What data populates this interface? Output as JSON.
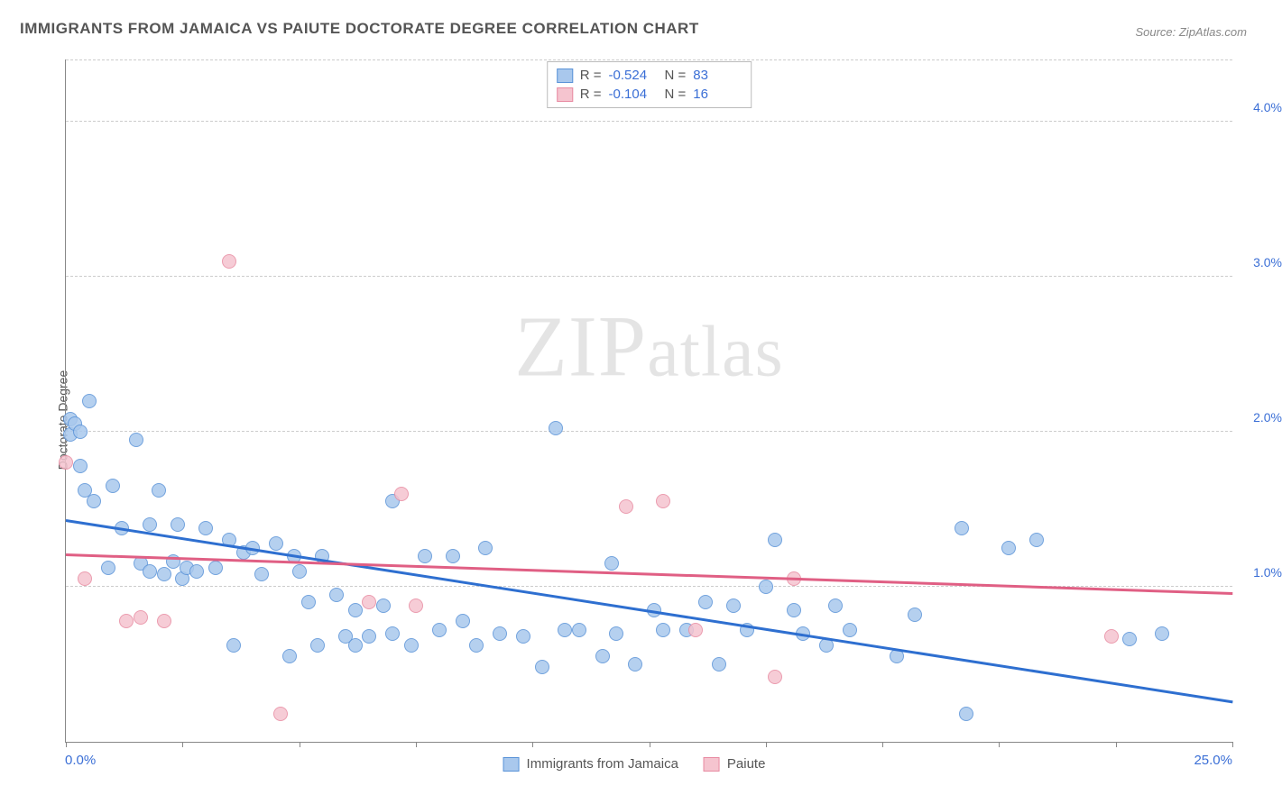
{
  "title": "IMMIGRANTS FROM JAMAICA VS PAIUTE DOCTORATE DEGREE CORRELATION CHART",
  "source_label": "Source: ",
  "source_value": "ZipAtlas.com",
  "y_axis_label": "Doctorate Degree",
  "watermark": "ZIPatlas",
  "chart": {
    "type": "scatter",
    "x_min": 0.0,
    "x_max": 25.0,
    "y_min": 0.0,
    "y_max": 4.4,
    "x_min_label": "0.0%",
    "x_max_label": "25.0%",
    "y_ticks": [
      {
        "v": 1.0,
        "label": "1.0%"
      },
      {
        "v": 2.0,
        "label": "2.0%"
      },
      {
        "v": 3.0,
        "label": "3.0%"
      },
      {
        "v": 4.0,
        "label": "4.0%"
      }
    ],
    "x_tick_step": 2.5,
    "background_color": "#ffffff",
    "grid_color": "#cccccc",
    "axis_color": "#888888",
    "tick_label_color": "#3b6fd6",
    "marker_radius": 8,
    "series": [
      {
        "name": "Immigrants from Jamaica",
        "fill": "#a9c8ed",
        "stroke": "#5a93d8",
        "r": -0.524,
        "n": 83,
        "trend": {
          "y_at_xmin": 1.42,
          "y_at_xmax": 0.25,
          "color": "#2e6fd0",
          "width": 2.5
        },
        "points": [
          [
            0.1,
            2.08
          ],
          [
            0.1,
            1.98
          ],
          [
            0.2,
            2.05
          ],
          [
            0.3,
            2.0
          ],
          [
            0.3,
            1.78
          ],
          [
            0.4,
            1.62
          ],
          [
            0.5,
            2.2
          ],
          [
            0.6,
            1.55
          ],
          [
            0.9,
            1.12
          ],
          [
            1.0,
            1.65
          ],
          [
            1.2,
            1.38
          ],
          [
            1.5,
            1.95
          ],
          [
            1.6,
            1.15
          ],
          [
            1.8,
            1.4
          ],
          [
            1.8,
            1.1
          ],
          [
            2.0,
            1.62
          ],
          [
            2.1,
            1.08
          ],
          [
            2.3,
            1.16
          ],
          [
            2.4,
            1.4
          ],
          [
            2.5,
            1.05
          ],
          [
            2.6,
            1.12
          ],
          [
            2.8,
            1.1
          ],
          [
            3.0,
            1.38
          ],
          [
            3.2,
            1.12
          ],
          [
            3.5,
            1.3
          ],
          [
            3.6,
            0.62
          ],
          [
            3.8,
            1.22
          ],
          [
            4.0,
            1.25
          ],
          [
            4.2,
            1.08
          ],
          [
            4.5,
            1.28
          ],
          [
            4.8,
            0.55
          ],
          [
            4.9,
            1.2
          ],
          [
            5.0,
            1.1
          ],
          [
            5.2,
            0.9
          ],
          [
            5.4,
            0.62
          ],
          [
            5.5,
            1.2
          ],
          [
            5.8,
            0.95
          ],
          [
            6.0,
            0.68
          ],
          [
            6.2,
            0.85
          ],
          [
            6.2,
            0.62
          ],
          [
            6.5,
            0.68
          ],
          [
            6.8,
            0.88
          ],
          [
            7.0,
            0.7
          ],
          [
            7.0,
            1.55
          ],
          [
            7.4,
            0.62
          ],
          [
            7.7,
            1.2
          ],
          [
            8.0,
            0.72
          ],
          [
            8.3,
            1.2
          ],
          [
            8.5,
            0.78
          ],
          [
            8.8,
            0.62
          ],
          [
            9.0,
            1.25
          ],
          [
            9.3,
            0.7
          ],
          [
            9.8,
            0.68
          ],
          [
            10.2,
            0.48
          ],
          [
            10.5,
            2.02
          ],
          [
            10.7,
            0.72
          ],
          [
            11.0,
            0.72
          ],
          [
            11.5,
            0.55
          ],
          [
            11.7,
            1.15
          ],
          [
            11.8,
            0.7
          ],
          [
            12.2,
            0.5
          ],
          [
            12.6,
            0.85
          ],
          [
            12.8,
            0.72
          ],
          [
            13.3,
            0.72
          ],
          [
            13.7,
            0.9
          ],
          [
            14.0,
            0.5
          ],
          [
            14.3,
            0.88
          ],
          [
            14.6,
            0.72
          ],
          [
            15.0,
            1.0
          ],
          [
            15.2,
            1.3
          ],
          [
            15.6,
            0.85
          ],
          [
            15.8,
            0.7
          ],
          [
            16.3,
            0.62
          ],
          [
            16.5,
            0.88
          ],
          [
            16.8,
            0.72
          ],
          [
            17.8,
            0.55
          ],
          [
            18.2,
            0.82
          ],
          [
            19.2,
            1.38
          ],
          [
            19.3,
            0.18
          ],
          [
            20.2,
            1.25
          ],
          [
            20.8,
            1.3
          ],
          [
            22.8,
            0.66
          ],
          [
            23.5,
            0.7
          ]
        ]
      },
      {
        "name": "Paiute",
        "fill": "#f5c4cf",
        "stroke": "#e88ba2",
        "r": -0.104,
        "n": 16,
        "trend": {
          "y_at_xmin": 1.2,
          "y_at_xmax": 0.95,
          "color": "#e05f84",
          "width": 2.5
        },
        "points": [
          [
            0.0,
            1.8
          ],
          [
            0.4,
            1.05
          ],
          [
            1.3,
            0.78
          ],
          [
            1.6,
            0.8
          ],
          [
            2.1,
            0.78
          ],
          [
            3.5,
            3.1
          ],
          [
            4.6,
            0.18
          ],
          [
            6.5,
            0.9
          ],
          [
            7.2,
            1.6
          ],
          [
            7.5,
            0.88
          ],
          [
            12.0,
            1.52
          ],
          [
            12.8,
            1.55
          ],
          [
            15.2,
            0.42
          ],
          [
            15.6,
            1.05
          ],
          [
            22.4,
            0.68
          ],
          [
            13.5,
            0.72
          ]
        ]
      }
    ]
  },
  "legend_top": [
    {
      "swatch_fill": "#a9c8ed",
      "swatch_stroke": "#5a93d8",
      "r_label": "R =",
      "r": "-0.524",
      "n_label": "N =",
      "n": "83"
    },
    {
      "swatch_fill": "#f5c4cf",
      "swatch_stroke": "#e88ba2",
      "r_label": "R =",
      "r": "-0.104",
      "n_label": "N =",
      "n": "16"
    }
  ],
  "legend_bottom": [
    {
      "swatch_fill": "#a9c8ed",
      "swatch_stroke": "#5a93d8",
      "label": "Immigrants from Jamaica"
    },
    {
      "swatch_fill": "#f5c4cf",
      "swatch_stroke": "#e88ba2",
      "label": "Paiute"
    }
  ]
}
